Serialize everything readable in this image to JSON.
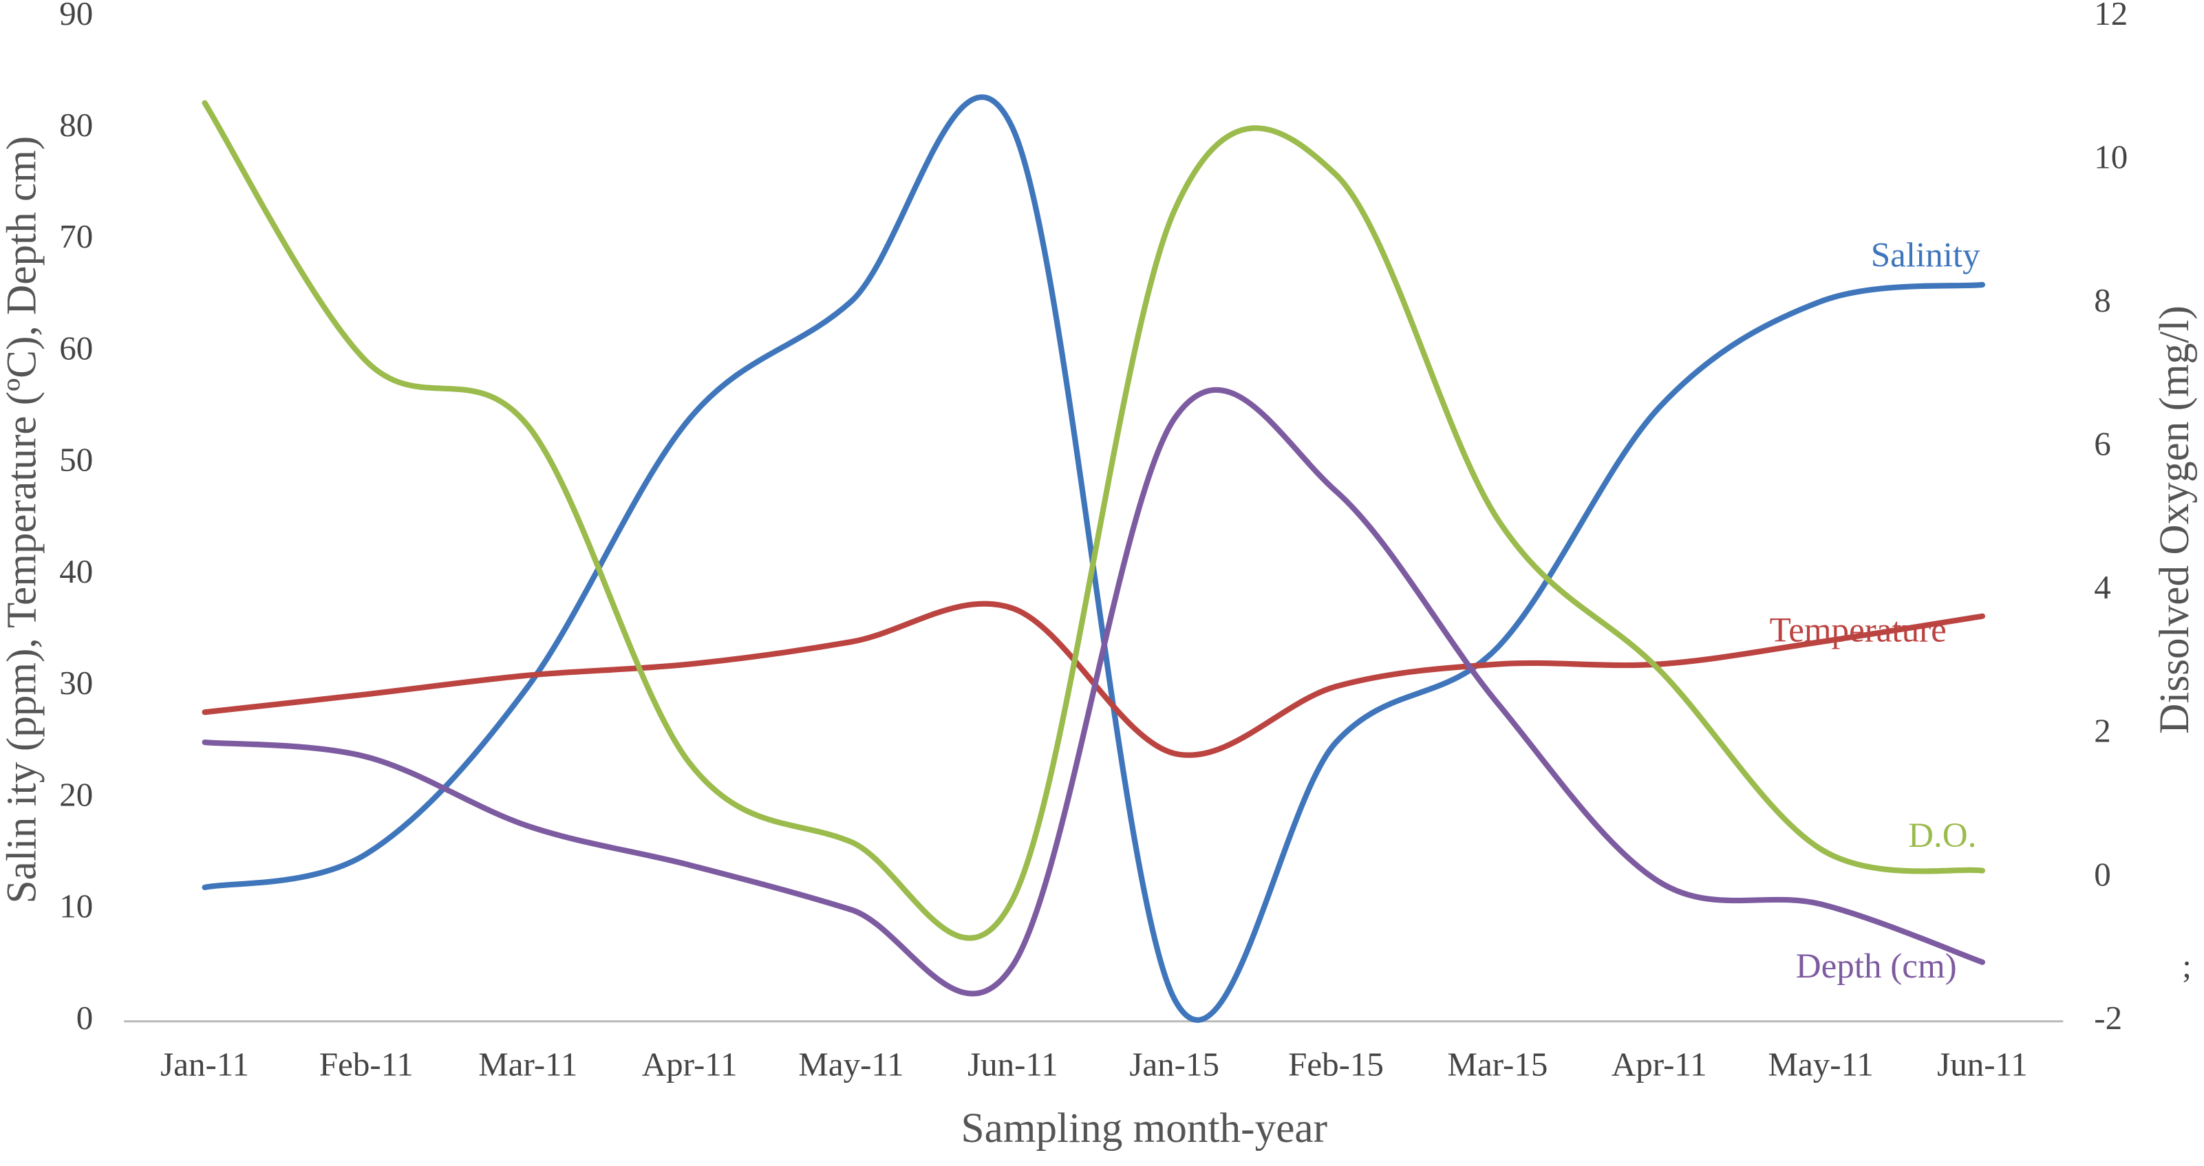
{
  "chart_data": {
    "type": "line",
    "x_label": "Sampling month-year",
    "y_label": "Salin ity (ppm), Temperature (ºC), Depth cm)",
    "y2_label": "Dissolved Oxygen (mg/l)",
    "annotation": ";",
    "categories": [
      "Jan-11",
      "Feb-11",
      "Mar-11",
      "Apr-11",
      "May-11",
      "Jun-11",
      "Jan-15",
      "Feb-15",
      "Mar-15",
      "Apr-11",
      "May-11",
      "Jun-11"
    ],
    "ylim": [
      0,
      90
    ],
    "yticks": [
      0,
      10,
      20,
      30,
      40,
      50,
      60,
      70,
      80,
      90
    ],
    "y2lim": [
      -2,
      12
    ],
    "y2ticks": [
      -2,
      0,
      2,
      4,
      6,
      8,
      10,
      12
    ],
    "smooth": true,
    "grid": false,
    "series": [
      {
        "name": "Salinity",
        "color": "#3f76bb",
        "values": [
          12,
          15,
          30,
          54,
          64.5,
          80,
          2,
          25,
          33.5,
          55,
          64.5,
          66
        ]
      },
      {
        "name": "Temperature",
        "color": "#bb4441",
        "values": [
          27.7,
          29.3,
          31,
          32,
          34,
          37,
          24,
          30,
          32,
          32,
          34,
          36.3
        ]
      },
      {
        "name": "D.O.",
        "color": "#9bbb4c",
        "axis": "y2",
        "values": [
          10.8,
          7.2,
          6.3,
          1.6,
          0.5,
          -0.3,
          9.3,
          9.8,
          5,
          2.9,
          0.4,
          0.1
        ]
      },
      {
        "name": "Depth (cm)",
        "color": "#7d5ba0",
        "values": [
          25,
          23.7,
          17.5,
          14,
          10,
          5,
          54,
          47.5,
          28.5,
          12.5,
          10.5,
          5.3
        ]
      }
    ]
  }
}
